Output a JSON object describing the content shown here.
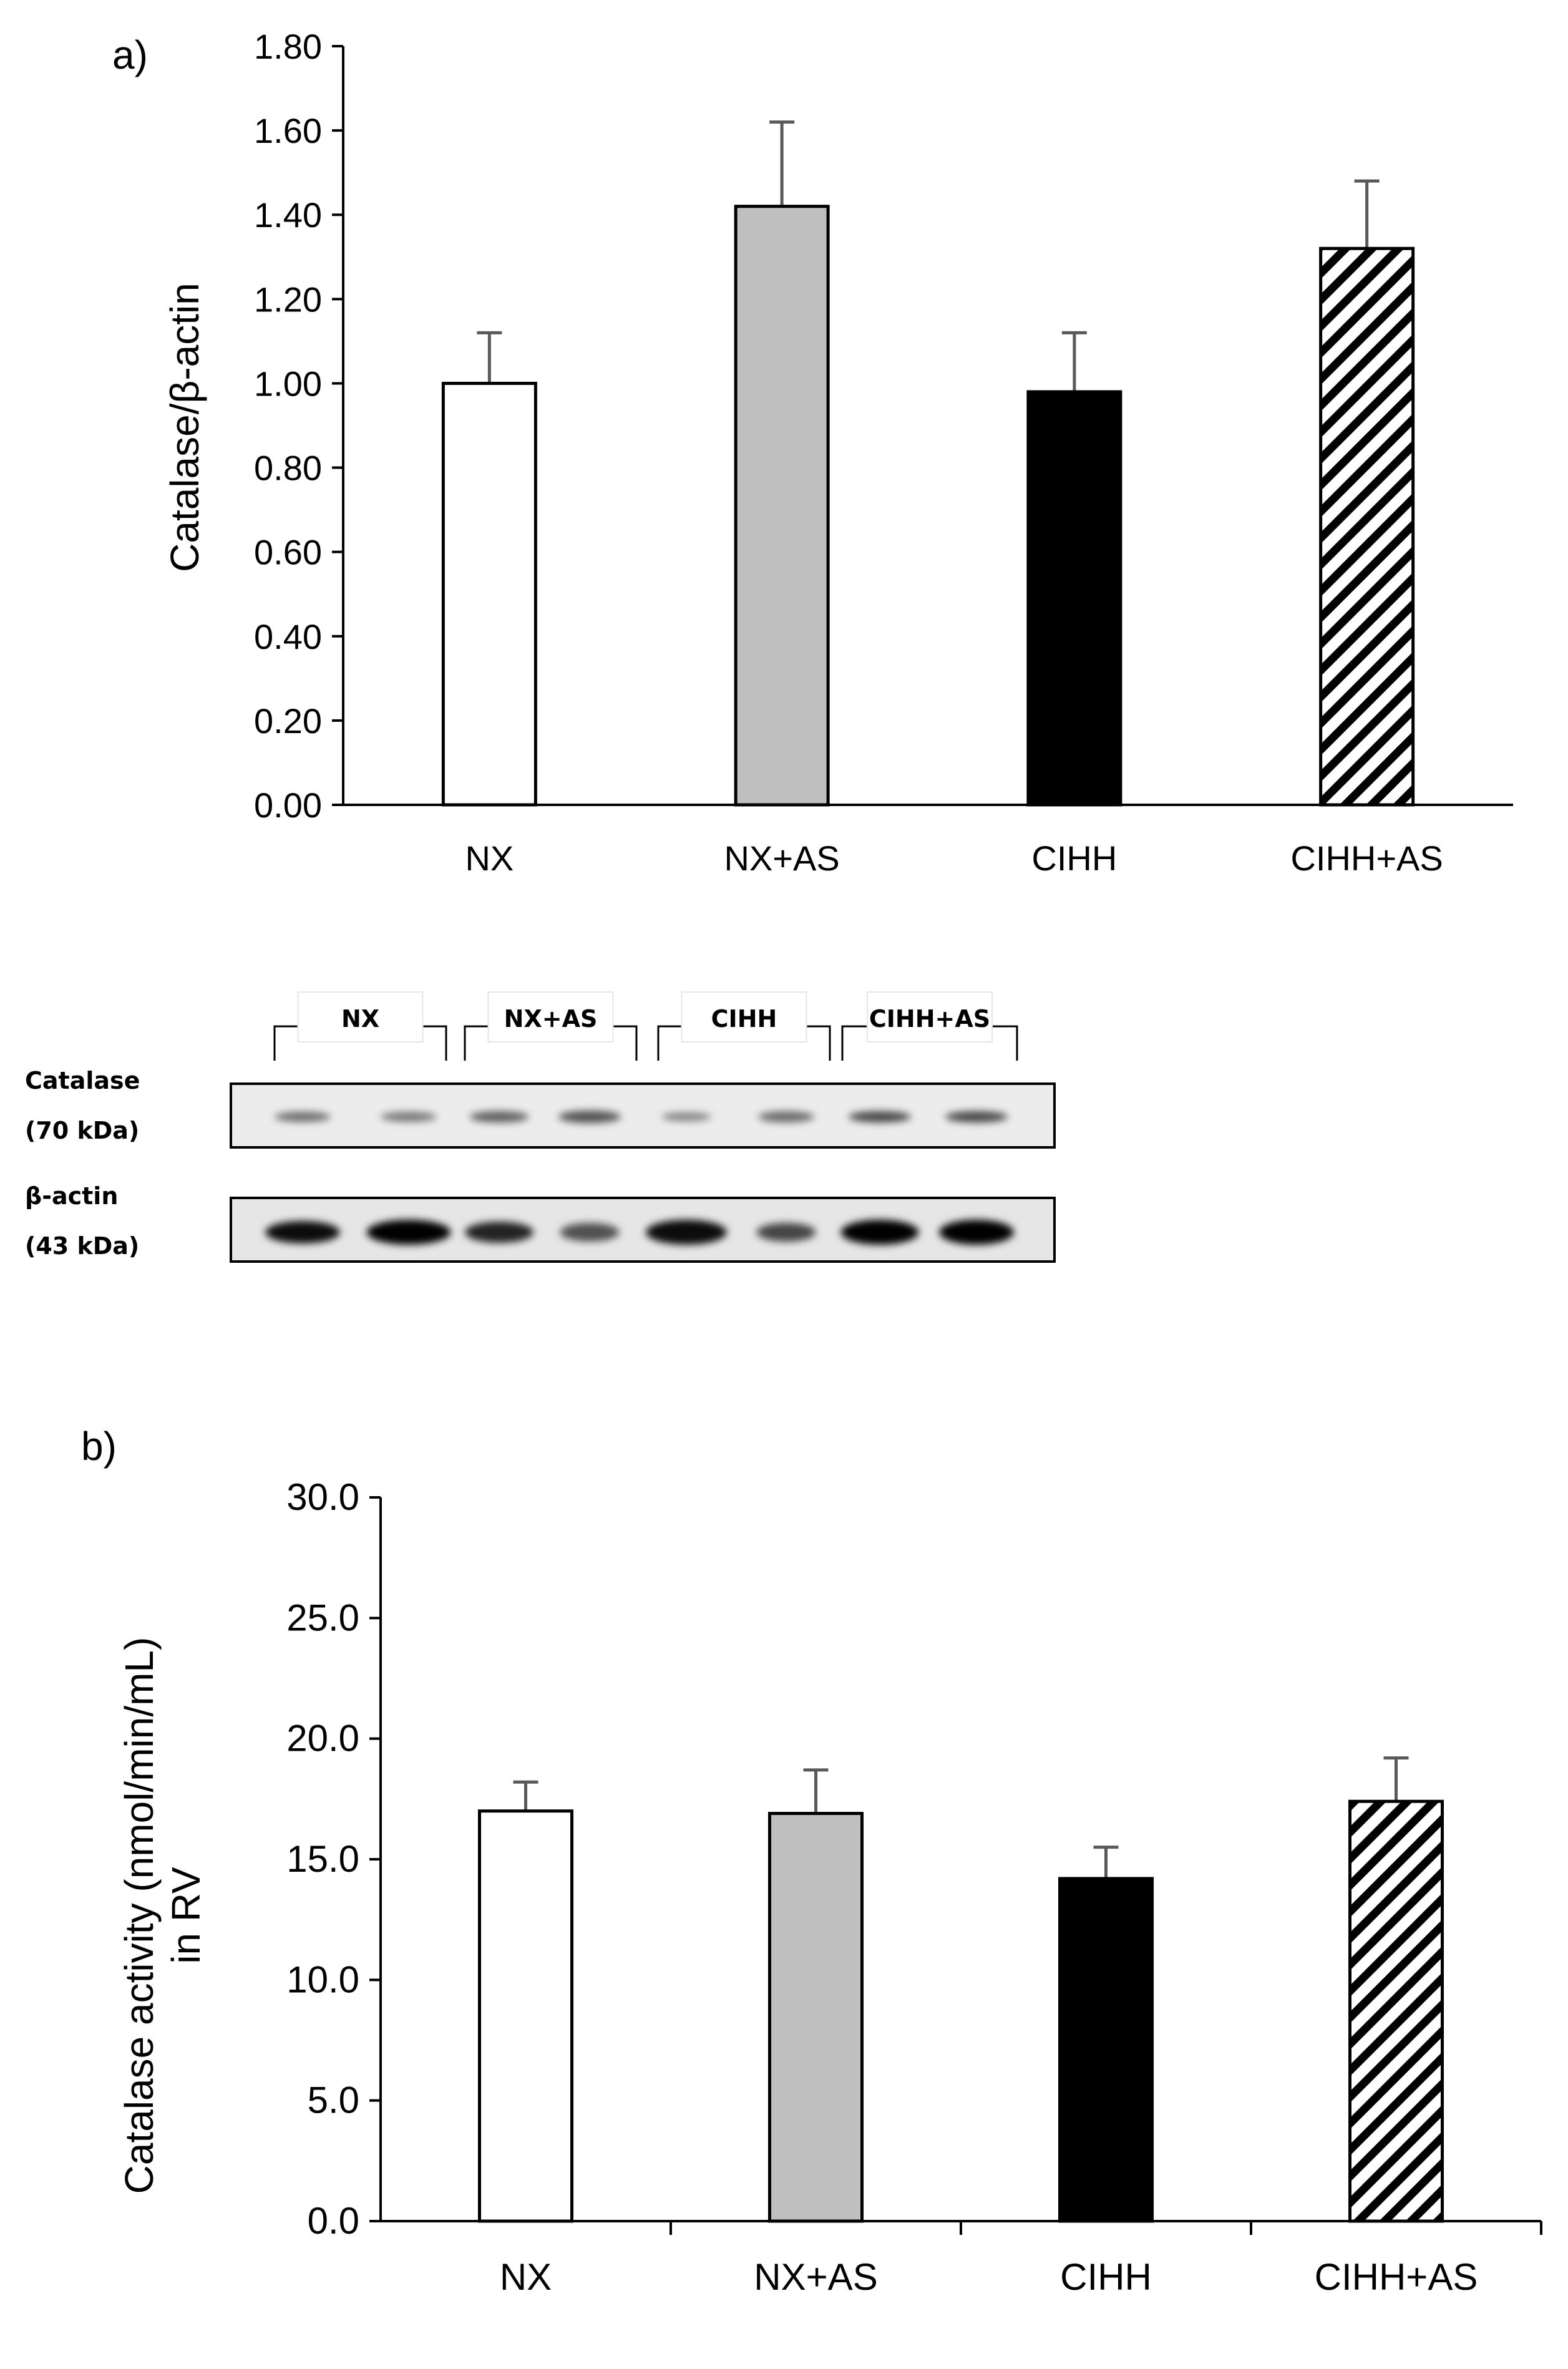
{
  "figure": {
    "panel_a_label": "a)",
    "panel_b_label": "b)"
  },
  "chart_data": [
    {
      "panel": "a)",
      "type": "bar",
      "title": "",
      "xlabel": "",
      "ylabel": "Catalase/β-actin",
      "categories": [
        "NX",
        "NX+AS",
        "CIHH",
        "CIHH+AS"
      ],
      "values": [
        1.0,
        1.42,
        0.98,
        1.32
      ],
      "errors": [
        0.12,
        0.2,
        0.14,
        0.16
      ],
      "ylim": [
        0,
        1.8
      ],
      "yticks": [
        "0.00",
        "0.20",
        "0.40",
        "0.60",
        "0.80",
        "1.00",
        "1.20",
        "1.40",
        "1.60",
        "1.80"
      ],
      "grid": false,
      "fills": [
        "white",
        "gray",
        "black",
        "hatched"
      ]
    },
    {
      "panel": "b)",
      "type": "bar",
      "title": "",
      "xlabel": "",
      "ylabel": "Catalase activity (nmol/min/mL)",
      "ylabel_line2": "in RV",
      "categories": [
        "NX",
        "NX+AS",
        "CIHH",
        "CIHH+AS"
      ],
      "values": [
        17.0,
        16.9,
        14.2,
        17.4
      ],
      "errors": [
        1.2,
        1.8,
        1.3,
        1.8
      ],
      "ylim": [
        0,
        30
      ],
      "yticks": [
        "0.0",
        "5.0",
        "10.0",
        "15.0",
        "20.0",
        "25.0",
        "30.0"
      ],
      "grid": false,
      "fills": [
        "white",
        "gray",
        "black",
        "hatched"
      ]
    }
  ],
  "blot": {
    "group_labels": [
      "NX",
      "NX+AS",
      "CIHH",
      "CIHH+AS"
    ],
    "rows": [
      {
        "name": "Catalase",
        "size": "(70 kDa)"
      },
      {
        "name": "β-actin",
        "size": "(43 kDa)"
      }
    ]
  },
  "colors": {
    "bar_outline": "#000000",
    "gray_bar": "#bfbfbf",
    "black_bar": "#000000",
    "white_bar": "#ffffff",
    "error_bar": "#595959"
  }
}
